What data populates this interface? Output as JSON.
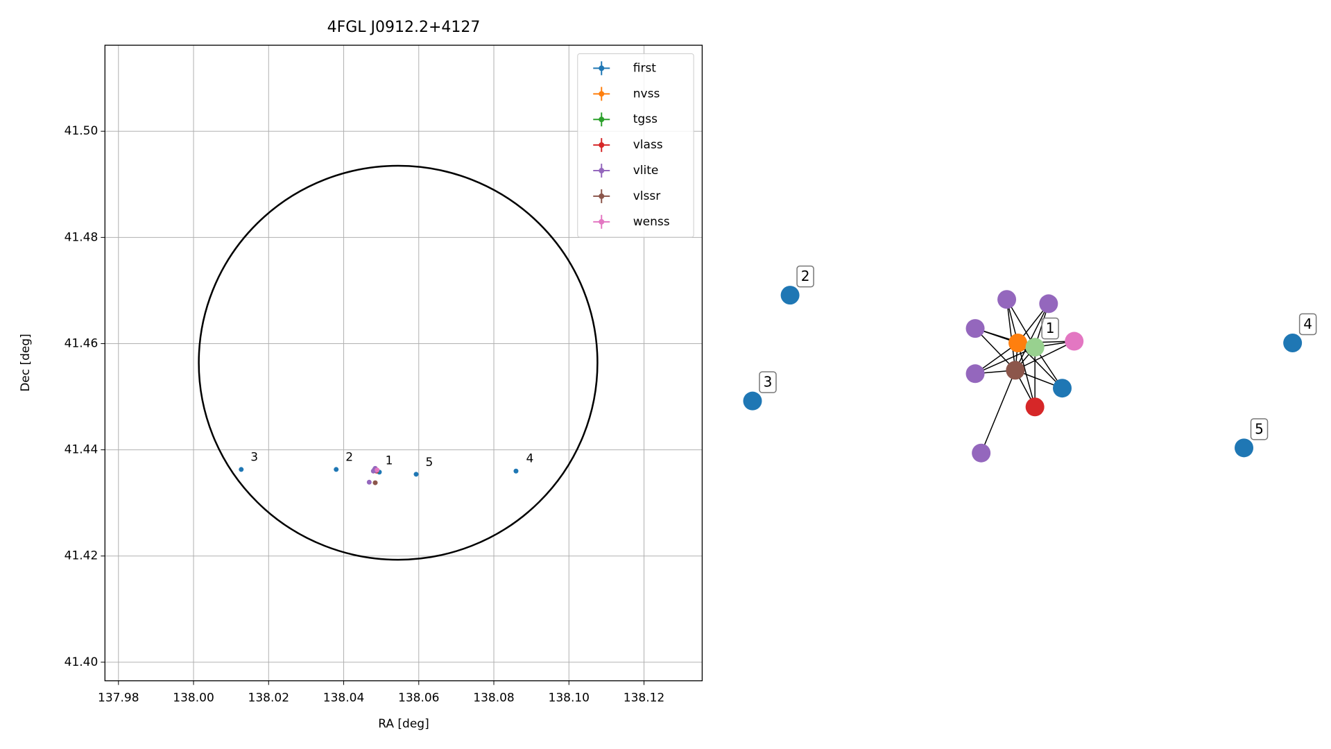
{
  "chart_data": [
    {
      "type": "scatter",
      "title": "4FGL J0912.2+4127",
      "xlabel": "RA [deg]",
      "ylabel": "Dec [deg]",
      "xlim": [
        137.9764,
        138.1355
      ],
      "ylim": [
        41.3965,
        41.5162
      ],
      "xticks": [
        137.98,
        {
          "value": 138,
          "label": "138.00"
        },
        138.02,
        138.04,
        138.06,
        138.08,
        {
          "value": 138.1,
          "label": "138.10"
        },
        138.12
      ],
      "yticks": [
        {
          "value": 41.4,
          "label": "41.40"
        },
        41.42,
        41.44,
        41.46,
        41.48,
        {
          "value": 41.5,
          "label": "41.50"
        }
      ],
      "grid": true,
      "legend": "upper right",
      "series": [
        {
          "name": "first",
          "color": "#1f77b4",
          "x": [
            138.0127,
            138.038,
            138.0593,
            138.0859,
            138.0495
          ],
          "values": [
            41.4363,
            41.4363,
            41.4354,
            41.436,
            41.4358
          ]
        },
        {
          "name": "nvss",
          "color": "#ff7f0e",
          "x": [
            138.0487
          ],
          "values": [
            41.4361
          ]
        },
        {
          "name": "tgss",
          "color": "#2ca02c",
          "x": [
            138.0488
          ],
          "values": [
            41.436
          ]
        },
        {
          "name": "vlass",
          "color": "#d62728",
          "x": [
            138.0487
          ],
          "values": [
            41.436
          ]
        },
        {
          "name": "vlite",
          "color": "#9467bd",
          "x": [
            138.0484,
            138.0468,
            138.0482,
            138.0486,
            138.0479
          ],
          "values": [
            41.4365,
            41.4339,
            41.4363,
            41.4361,
            41.436
          ]
        },
        {
          "name": "vlssr",
          "color": "#8c564b",
          "x": [
            138.0484
          ],
          "values": [
            41.4338
          ]
        },
        {
          "name": "wenss",
          "color": "#e377c2",
          "x": [
            138.0489
          ],
          "values": [
            41.4362
          ]
        }
      ],
      "circle": {
        "x": 138.0545,
        "y": 41.4564,
        "rx": 0.0531,
        "ry": 0.0371,
        "color": "#000000"
      },
      "annotations": [
        {
          "text": "3",
          "x": 138.0152,
          "y": 41.4386
        },
        {
          "text": "2",
          "x": 138.0405,
          "y": 41.4386
        },
        {
          "text": "1",
          "x": 138.0511,
          "y": 41.4379
        },
        {
          "text": "5",
          "x": 138.0618,
          "y": 41.4376
        },
        {
          "text": "4",
          "x": 138.0886,
          "y": 41.4383
        }
      ]
    },
    {
      "type": "network",
      "nodes": [
        {
          "color": "#1f77b4",
          "label": "2"
        },
        {
          "color": "#1f77b4",
          "label": "3"
        },
        {
          "color": "#1f77b4",
          "label": "4"
        },
        {
          "color": "#1f77b4",
          "label": "5"
        },
        {
          "color": "#1f77b4",
          "label": null
        },
        {
          "color": "#ff7f0e",
          "label": null
        },
        {
          "color": "#98d18f",
          "label": "1"
        },
        {
          "color": "#d62728",
          "label": null
        },
        {
          "color": "#9467bd",
          "label": null
        },
        {
          "color": "#9467bd",
          "label": null
        },
        {
          "color": "#9467bd",
          "label": null
        },
        {
          "color": "#9467bd",
          "label": null
        },
        {
          "color": "#9467bd",
          "label": null
        },
        {
          "color": "#8c564b",
          "label": null
        },
        {
          "color": "#e377c2",
          "label": null
        }
      ],
      "edges": [
        [
          13,
          12
        ],
        [
          13,
          4
        ],
        [
          13,
          5
        ],
        [
          13,
          6
        ],
        [
          13,
          7
        ],
        [
          13,
          8
        ],
        [
          13,
          9
        ],
        [
          13,
          10
        ],
        [
          13,
          11
        ],
        [
          13,
          14
        ],
        [
          5,
          4
        ],
        [
          5,
          6
        ],
        [
          5,
          7
        ],
        [
          5,
          8
        ],
        [
          5,
          9
        ],
        [
          5,
          10
        ],
        [
          5,
          11
        ],
        [
          5,
          14
        ],
        [
          6,
          4
        ],
        [
          6,
          7
        ],
        [
          6,
          8
        ],
        [
          6,
          9
        ],
        [
          6,
          10
        ],
        [
          6,
          11
        ],
        [
          6,
          14
        ]
      ]
    }
  ]
}
